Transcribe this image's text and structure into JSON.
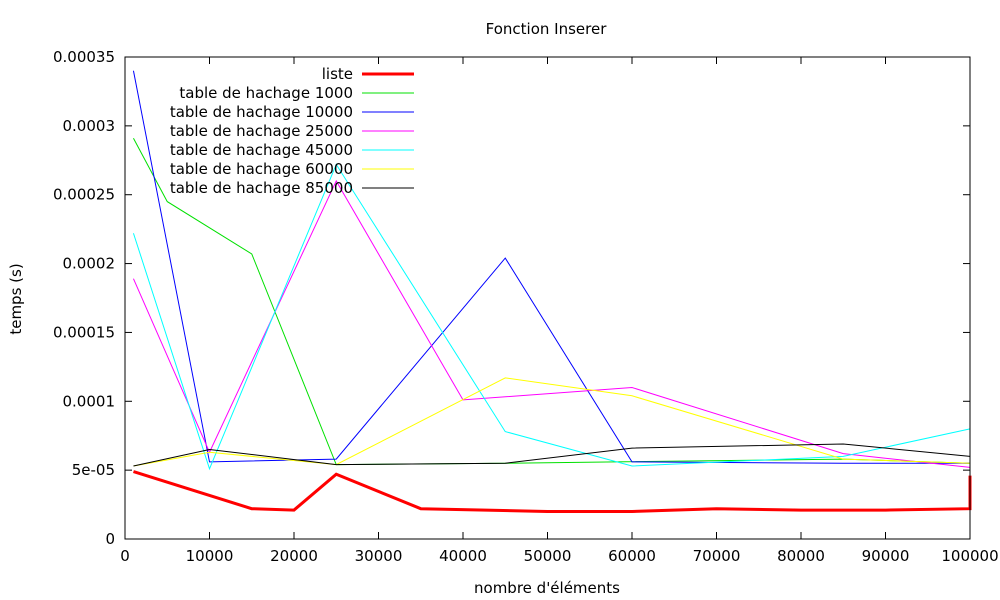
{
  "chart_data": {
    "type": "line",
    "title": "Fonction Inserer",
    "xlabel": "nombre d'éléments",
    "ylabel": "temps (s)",
    "xlim": [
      0,
      100000
    ],
    "ylim": [
      0,
      0.00035
    ],
    "x_ticks": [
      0,
      10000,
      20000,
      30000,
      40000,
      50000,
      60000,
      70000,
      80000,
      90000,
      100000
    ],
    "x_tick_labels": [
      "0",
      "10000",
      "20000",
      "30000",
      "40000",
      "50000",
      "60000",
      "70000",
      "80000",
      "90000",
      "100000"
    ],
    "y_ticks": [
      0,
      5e-05,
      0.0001,
      0.00015,
      0.0002,
      0.00025,
      0.0003,
      0.00035
    ],
    "y_tick_labels": [
      "0",
      "5e-05",
      "0.0001",
      "0.00015",
      "0.0002",
      "0.00025",
      "0.0003",
      "0.00035"
    ],
    "grid": false,
    "legend_position": "top-left (inside)",
    "series": [
      {
        "name": "liste",
        "color": "#ff0000",
        "width": 3,
        "x": [
          1000,
          15000,
          20000,
          25000,
          35000,
          50000,
          60000,
          70000,
          80000,
          90000,
          100000,
          100000
        ],
        "y": [
          4.9e-05,
          2.2e-05,
          2.1e-05,
          4.7e-05,
          2.2e-05,
          2e-05,
          2e-05,
          2.2e-05,
          2.1e-05,
          2.1e-05,
          2.2e-05,
          4.6e-05
        ]
      },
      {
        "name": "table de hachage 1000",
        "color": "#00e000",
        "width": 1,
        "x": [
          1000,
          5000,
          15000,
          25000,
          45000,
          85000,
          100000
        ],
        "y": [
          0.000291,
          0.000245,
          0.000207,
          5.4e-05,
          5.5e-05,
          5.8e-05,
          5.5e-05
        ]
      },
      {
        "name": "table de hachage 10000",
        "color": "#0000ff",
        "width": 1,
        "x": [
          1000,
          10000,
          25000,
          45000,
          60000,
          85000,
          100000
        ],
        "y": [
          0.00034,
          5.6e-05,
          5.8e-05,
          0.000204,
          5.6e-05,
          5.5e-05,
          5.5e-05
        ]
      },
      {
        "name": "table de hachage 25000",
        "color": "#ff00ff",
        "width": 1,
        "x": [
          1000,
          10000,
          25000,
          40000,
          60000,
          85000,
          100000
        ],
        "y": [
          0.000189,
          6.3e-05,
          0.00026,
          0.000101,
          0.00011,
          6.2e-05,
          5.2e-05
        ]
      },
      {
        "name": "table de hachage 45000",
        "color": "#00ffff",
        "width": 1,
        "x": [
          1000,
          10000,
          25000,
          45000,
          60000,
          85000,
          100000
        ],
        "y": [
          0.000222,
          5.1e-05,
          0.000272,
          7.8e-05,
          5.3e-05,
          6e-05,
          8e-05
        ]
      },
      {
        "name": "table de hachage 60000",
        "color": "#ffff00",
        "width": 1,
        "x": [
          1000,
          10000,
          25000,
          45000,
          60000,
          85000,
          100000
        ],
        "y": [
          5.3e-05,
          6.3e-05,
          5.4e-05,
          0.000117,
          0.000104,
          5.8e-05,
          5.5e-05
        ]
      },
      {
        "name": "table de hachage 85000",
        "color": "#000000",
        "width": 1,
        "x": [
          1000,
          10000,
          25000,
          45000,
          60000,
          85000,
          100000
        ],
        "y": [
          5.3e-05,
          6.5e-05,
          5.4e-05,
          5.5e-05,
          6.6e-05,
          6.9e-05,
          6e-05
        ]
      }
    ]
  }
}
